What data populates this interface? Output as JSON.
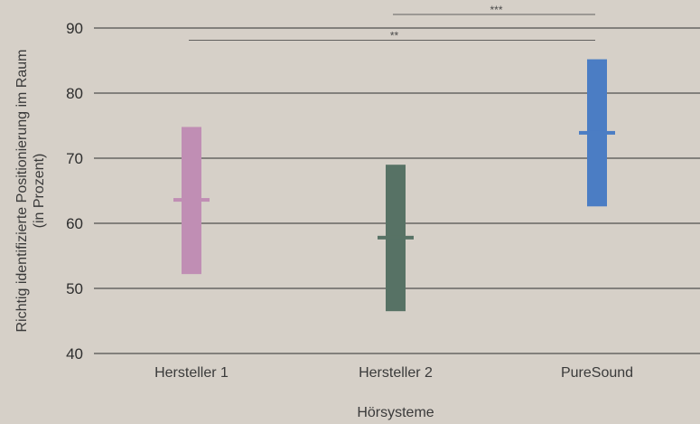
{
  "chart_data": {
    "type": "range",
    "xlabel": "Hörsysteme",
    "ylabel_line1": "Richtig identifizierte Positionierung im Raum",
    "ylabel_line2": "(in Prozent)",
    "ylim": [
      40,
      90
    ],
    "yticks": [
      40,
      50,
      60,
      70,
      80,
      90
    ],
    "grid": true,
    "categories": [
      "Hersteller 1",
      "Hersteller 2",
      "PureSound"
    ],
    "series": [
      {
        "category": "Hersteller 1",
        "low": 52.2,
        "high": 74.8,
        "mean": 63.6,
        "color": "#c08eb4"
      },
      {
        "category": "Hersteller 2",
        "low": 46.5,
        "high": 69.0,
        "mean": 57.8,
        "color": "#577265"
      },
      {
        "category": "PureSound",
        "low": 62.6,
        "high": 85.2,
        "mean": 73.9,
        "color": "#4b7dc4"
      }
    ],
    "significance": [
      {
        "from": "Hersteller 1",
        "to": "PureSound",
        "label": "**",
        "y": 88.0
      },
      {
        "from": "Hersteller 2",
        "to": "PureSound",
        "label": "***",
        "y": 92.2
      }
    ]
  }
}
